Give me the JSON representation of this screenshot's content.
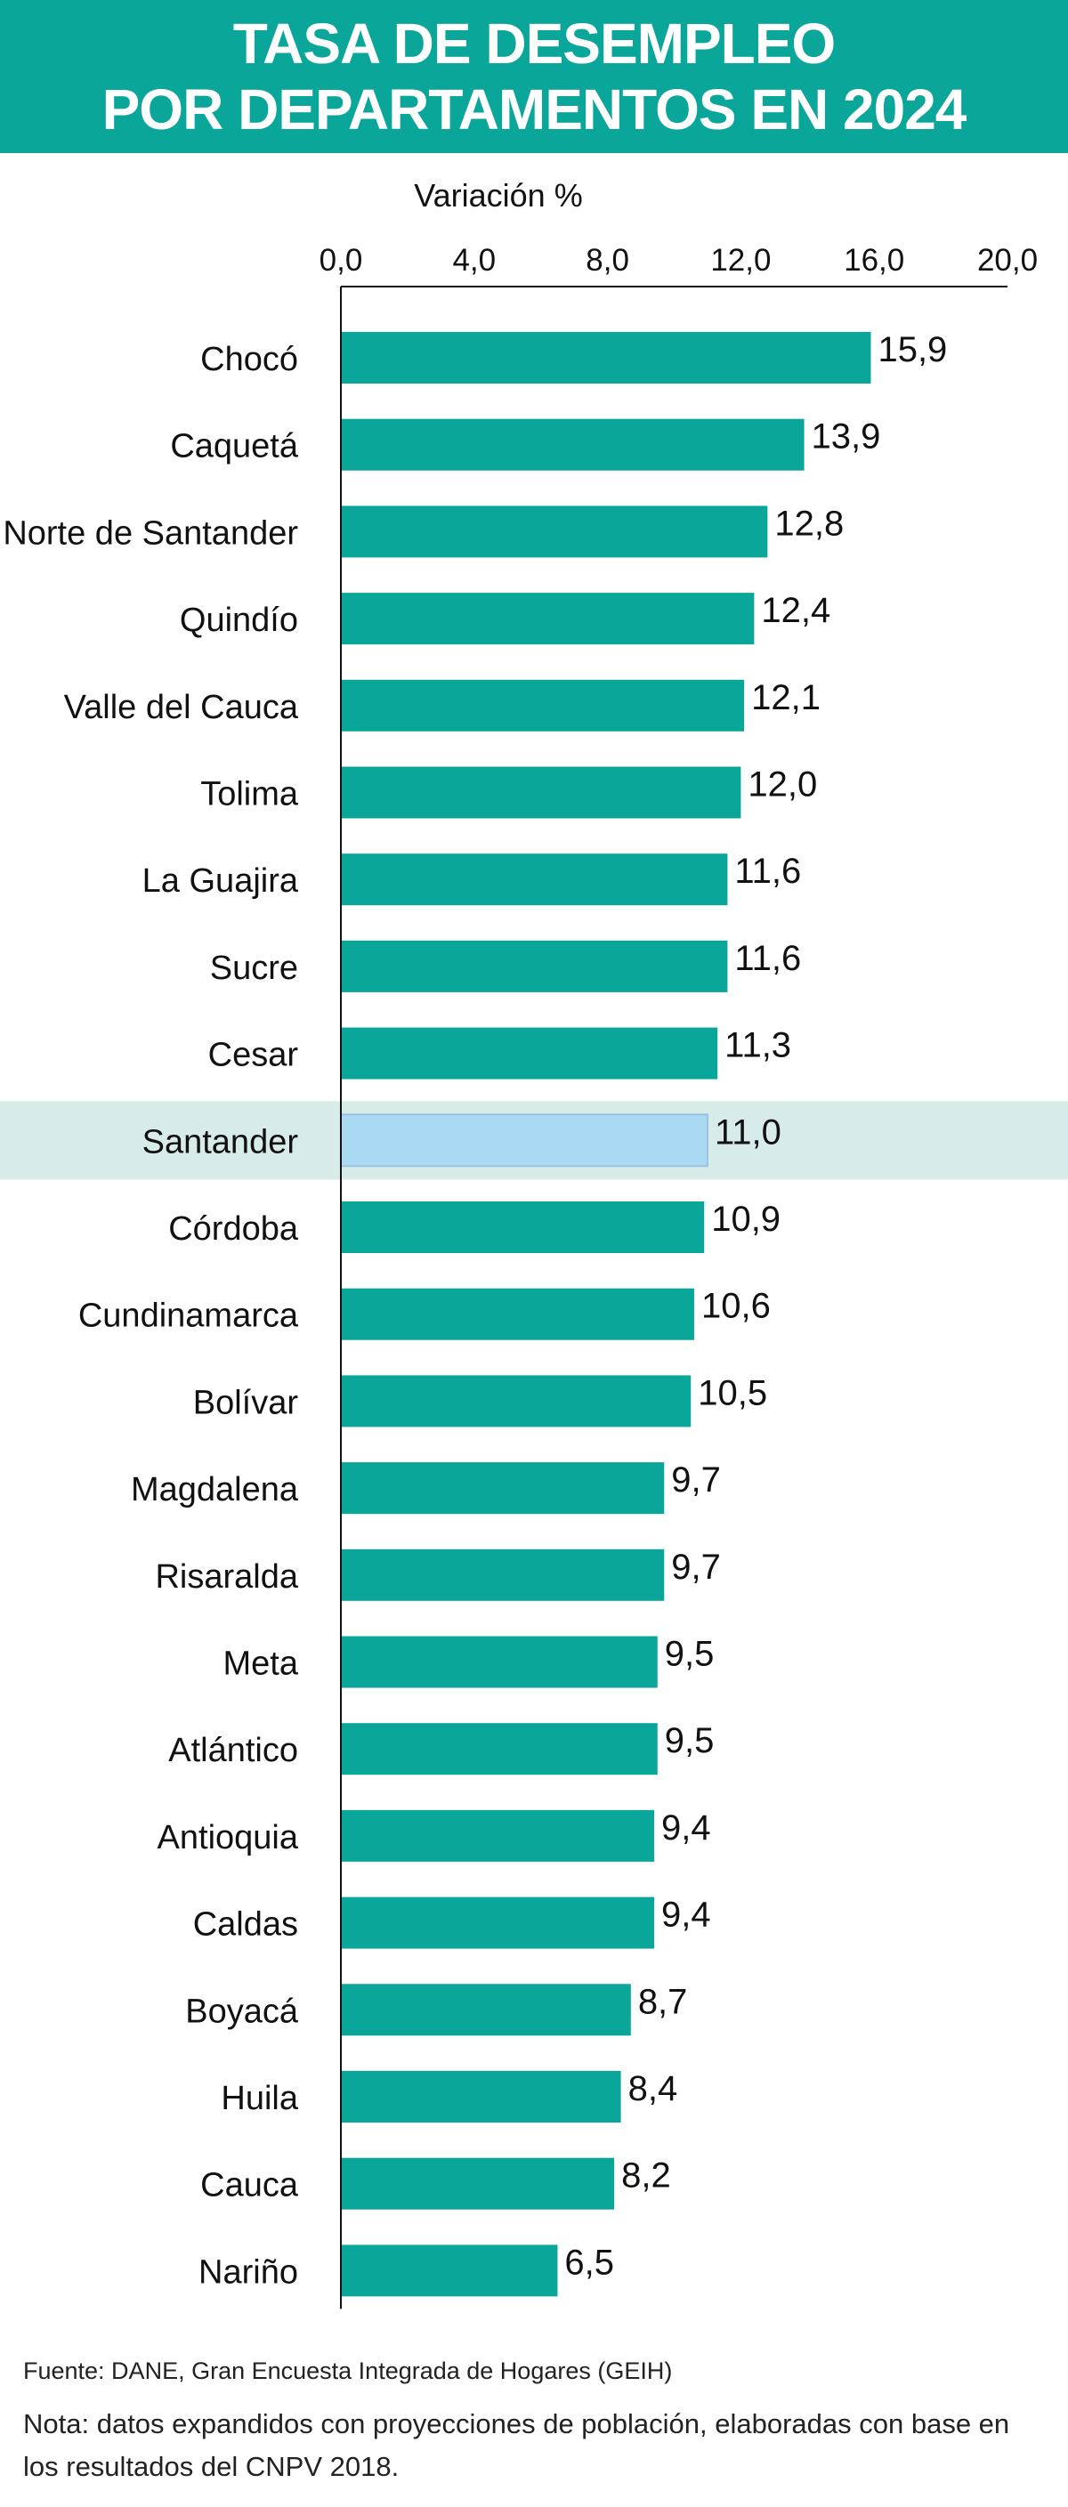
{
  "header": {
    "title_line1": "TASA DE DESEMPLEO",
    "title_line2": "POR DEPARTAMENTOS EN 2024"
  },
  "chart_data": {
    "type": "bar",
    "orientation": "horizontal",
    "title": "TASA DE DESEMPLEO POR DEPARTAMENTOS EN 2024",
    "xlabel": "Variación %",
    "ylabel": "",
    "xlim": [
      0,
      20
    ],
    "ticks": [
      "0,0",
      "4,0",
      "8,0",
      "12,0",
      "16,0",
      "20,0"
    ],
    "tick_values": [
      0,
      4,
      8,
      12,
      16,
      20
    ],
    "grid": false,
    "categories": [
      "Chocó",
      "Caquetá",
      "Norte de Santander",
      "Quindío",
      "Valle del Cauca",
      "Tolima",
      "La Guajira",
      "Sucre",
      "Cesar",
      "Santander",
      "Córdoba",
      "Cundinamarca",
      "Bolívar",
      "Magdalena",
      "Risaralda",
      "Meta",
      "Atlántico",
      "Antioquia",
      "Caldas",
      "Boyacá",
      "Huila",
      "Cauca",
      "Nariño"
    ],
    "values": [
      15.9,
      13.9,
      12.8,
      12.4,
      12.1,
      12.0,
      11.6,
      11.6,
      11.3,
      11.0,
      10.9,
      10.6,
      10.5,
      9.7,
      9.7,
      9.5,
      9.5,
      9.4,
      9.4,
      8.7,
      8.4,
      8.2,
      6.5
    ],
    "value_labels": [
      "15,9",
      "13,9",
      "12,8",
      "12,4",
      "12,1",
      "12,0",
      "11,6",
      "11,6",
      "11,3",
      "11,0",
      "10,9",
      "10,6",
      "10,5",
      "9,7",
      "9,7",
      "9,5",
      "9,5",
      "9,4",
      "9,4",
      "8,7",
      "8,4",
      "8,2",
      "6,5"
    ],
    "highlight": "Santander",
    "colors": {
      "bar": "#0ba69a",
      "highlight_bar": "#a9d9f3",
      "highlight_band": "#d7ebe9",
      "header": "#0ba69a"
    }
  },
  "footer": {
    "source": "Fuente: DANE, Gran Encuesta Integrada de Hogares (GEIH)",
    "note": "Nota: datos expandidos con proyecciones de población, elaboradas con base en los resultados del CNPV 2018."
  }
}
